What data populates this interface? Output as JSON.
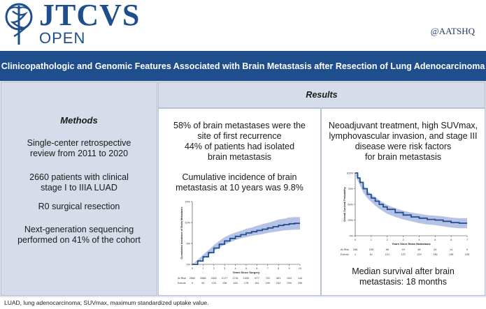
{
  "header": {
    "logo_main": "JTCVS",
    "logo_sub": "OPEN",
    "handle": "@AATSHQ"
  },
  "title": "Clinicopathologic and Genomic Features Associated with Brain Metastasis after Resection of Lung Adenocarcinoma",
  "methods": {
    "heading": "Methods",
    "items": [
      "Single-center retrospective review from 2011 to 2020",
      "2660 patients with clinical stage I to IIIA LUAD",
      "R0 surgical resection",
      "Next-generation sequencing performed on 41% of the cohort"
    ]
  },
  "results": {
    "heading": "Results",
    "left": {
      "text1_lines": [
        "58% of brain metastases were the",
        "site of first recurrence",
        "44% of patients had isolated",
        "brain metastasis"
      ],
      "text2_lines": [
        "Cumulative incidence of brain",
        "metastasis at 10 years was 9.8%"
      ]
    },
    "right": {
      "text1_lines": [
        "Neoadjuvant treatment, high SUVmax,",
        "lymphovascular invasion, and stage III",
        "disease were risk factors",
        "for brain metastasis"
      ],
      "text2_lines": [
        "Median survival after brain",
        "metastasis: 18 months"
      ]
    }
  },
  "footnote": "LUAD, lung adenocarcinoma; SUVmax, maximum standardized uptake value.",
  "colors": {
    "brand": "#1f4e8c",
    "curve": "#1f4e8c",
    "band": "#b7c3e6"
  },
  "chart_data": [
    {
      "type": "line",
      "title": "",
      "xlabel": "Years Since Surgery",
      "ylabel": "Cumulative Incidence of Brain Metastasis",
      "xlim": [
        0,
        10
      ],
      "ylim": [
        0,
        15
      ],
      "x_ticks": [
        "0",
        "1",
        "2",
        "3",
        "4",
        "5",
        "6",
        "7",
        "8",
        "9",
        "10"
      ],
      "y_ticks": [
        "0%",
        "5%",
        "10%",
        "15%"
      ],
      "series": [
        {
          "name": "Cumulative incidence",
          "x": [
            0,
            0.5,
            1,
            1.5,
            2,
            2.5,
            3,
            3.5,
            4,
            4.5,
            5,
            5.5,
            6,
            6.5,
            7,
            7.5,
            8,
            8.5,
            9,
            9.5,
            10
          ],
          "y": [
            0,
            0.8,
            1.8,
            2.8,
            3.9,
            4.8,
            5.6,
            6.2,
            6.7,
            7.1,
            7.5,
            7.8,
            8.1,
            8.4,
            8.7,
            9.0,
            9.3,
            9.5,
            9.7,
            9.8,
            9.8
          ],
          "lower": [
            0,
            0.5,
            1.3,
            2.2,
            3.2,
            4.0,
            4.7,
            5.3,
            5.8,
            6.2,
            6.5,
            6.8,
            7.0,
            7.2,
            7.5,
            7.7,
            7.9,
            8.1,
            8.2,
            8.3,
            8.3
          ],
          "upper": [
            0,
            1.1,
            2.3,
            3.4,
            4.6,
            5.6,
            6.5,
            7.1,
            7.6,
            8.0,
            8.5,
            8.8,
            9.2,
            9.6,
            9.9,
            10.3,
            10.7,
            10.9,
            11.2,
            11.3,
            11.3
          ]
        }
      ],
      "risk_table": {
        "labels": [
          "At Risk",
          "Events"
        ],
        "at_risk": [
          "2660",
          "2586",
          "2320",
          "2177",
          "1741",
          "1330",
          "977",
          "701",
          "481",
          "264",
          "144"
        ],
        "events": [
          "0",
          "54",
          "103",
          "136",
          "163",
          "178",
          "181",
          "199",
          "232",
          "299",
          "299"
        ]
      }
    },
    {
      "type": "line",
      "title": "",
      "xlabel": "Years Since Brain Metastasis",
      "ylabel": "Overall Survival Probability",
      "xlim": [
        0,
        7
      ],
      "ylim": [
        0,
        100
      ],
      "x_ticks": [
        "0",
        "1",
        "2",
        "3",
        "4",
        "5",
        "6",
        "7"
      ],
      "y_ticks": [
        "0%",
        "25%",
        "50%",
        "75%",
        "100%"
      ],
      "series": [
        {
          "name": "Overall survival",
          "x": [
            0,
            0.15,
            0.3,
            0.5,
            0.75,
            1,
            1.25,
            1.5,
            1.75,
            2,
            2.5,
            3,
            3.5,
            4,
            4.5,
            5,
            5.5,
            6,
            6.5,
            7
          ],
          "y": [
            100,
            92,
            85,
            75,
            66,
            60,
            55,
            50,
            46,
            42,
            37,
            33,
            30,
            28,
            26,
            25,
            23,
            21,
            20,
            20
          ],
          "lower": [
            100,
            88,
            80,
            69,
            60,
            54,
            48,
            43,
            39,
            35,
            30,
            26,
            23,
            20,
            18,
            17,
            15,
            13,
            12,
            12
          ],
          "upper": [
            100,
            95,
            90,
            81,
            72,
            66,
            62,
            57,
            53,
            49,
            44,
            40,
            37,
            35,
            33,
            32,
            31,
            29,
            28,
            28
          ]
        }
      ],
      "risk_table": {
        "labels": [
          "At Risk",
          "Events"
        ],
        "at_risk": [
          "266",
          "155",
          "88",
          "49",
          "36",
          "24",
          "14",
          "9"
        ],
        "events": [
          "1",
          "61",
          "110",
          "122",
          "129",
          "136",
          "138",
          "139"
        ]
      }
    }
  ]
}
